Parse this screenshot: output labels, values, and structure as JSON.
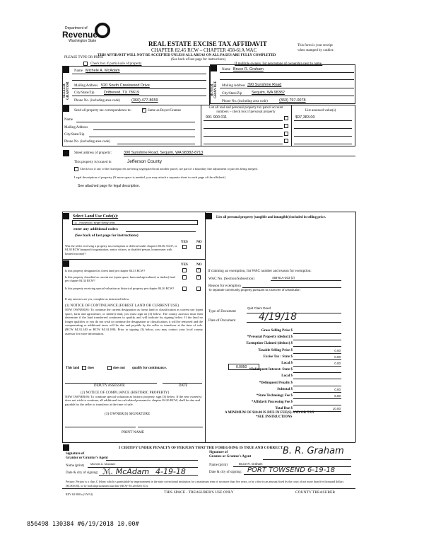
{
  "header": {
    "logo_line1": "Department of",
    "logo_line2": "Revenue",
    "logo_line3": "Washington State",
    "title": "REAL ESTATE EXCISE TAX AFFIDAVIT",
    "subtitle": "CHAPTER 82.45 RCW – CHAPTER 458-61A WAC",
    "warning": "THIS AFFIDAVIT WILL NOT BE ACCEPTED UNLESS ALL AREAS ON ALL PAGES ARE FULLY COMPLETED",
    "see_back": "(See back of last page for instructions)",
    "please_type": "PLEASE TYPE OR PRINT",
    "receipt_note_1": "This form is your receipt",
    "receipt_note_2": "when stamped by cashier.",
    "partial_sale": "Check box if partial sale of property",
    "multiple_owners": "If multiple owners, list percentage of ownership next to name."
  },
  "seller": {
    "side_label": "SELLER GRANTOR",
    "name_label": "Name",
    "name": "Michele A. McAdam",
    "mailing_label": "Mailing Address",
    "mailing": "520 South Creekwood Drive",
    "city_label": "City/State/Zip",
    "city": "Driftwood, TX 78619",
    "phone_label": "Phone No. (including area code)",
    "phone": "(360) 477-8659"
  },
  "buyer": {
    "side_label": "BUYER GRANTEE",
    "name_label": "Name",
    "name": "Bruce R. Graham",
    "mailing_label": "Mailing Address",
    "mailing": "390 Sunshine Road",
    "city_label": "City/State/Zip",
    "city": "Sequim, WA 98382",
    "phone_label": "Phone No. (including area code)",
    "phone": "(360) 797-0078"
  },
  "correspondence": {
    "label": "Send all property tax correspondence to:",
    "same_as": "Same as Buyer/Grantee",
    "same_checked": true,
    "name_label": "Name",
    "mailing_label": "Mailing Address",
    "city_label": "City/State/Zip",
    "phone_label": "Phone No. (including area code)",
    "parcel_header": "List all real and personal property tax parcel account numbers – check box if personal property",
    "assessed_header": "List assessed value(s)",
    "parcels": [
      {
        "number": "991 900 011",
        "value": "$97,383.00"
      }
    ]
  },
  "property": {
    "street_label": "Street address of property:",
    "street": "390 Sunshine Road, Sequim, WA 98382-8713",
    "county_label": "This property is located in",
    "county": "Jefferson County",
    "segregated": "Check box if any of the listed parcels are being segregated from another parcel, are part of a boundary line adjustment or parcels being merged.",
    "legal_label": "Legal description of property (If more space is needed, you may attach a separate sheet to each page of the affidavit)",
    "legal": "See attached page for legal description."
  },
  "land_use": {
    "label": "Select Land Use Code(s):",
    "code": "11 - Household, single family units",
    "additional": "enter any additional codes:",
    "see_back": "(See back of last page for instructions)",
    "yes": "YES",
    "no": "NO",
    "q_exempt": "Was the seller receiving a property tax exemption or deferral under chapters 84.36, 84.37, or 84.38 RCW (nonprofit organization, senior citizen, or disabled person, homeowner with limited income)?"
  },
  "designation": {
    "q1": "Is this property designated as forest land per chapter 84.33 RCW?",
    "q2": "Is this property classified as current use (open space, farm and agricultural, or timber) land per chapter 84.34 RCW?",
    "q3": "Is this property receiving special valuation as historical property per chapter 84.26 RCW?",
    "if_yes": "If any answers are yes, complete as instructed below.",
    "notice1_title": "(1) NOTICE OF CONTINUANCE (FOREST LAND OR CURRENT USE)",
    "notice1_body": "NEW OWNER(S): To continue the current designation as forest land or classification as current use (open space, farm and agriculture, or timber) land, you must sign on (3) below. The county assessor must then determine if the land transferred continues to qualify and will indicate by signing below. If the land no longer qualifies or you do not wish to continue the designation or classification, it will be removed and the compensating or additional taxes will be due and payable by the seller or transferor at the time of sale. (RCW 84.33.140 or RCW 84.34.108). Prior to signing (3) below, you may contact your local county assessor for more information.",
    "this_land": "This land",
    "does": "does",
    "does_not": "does not",
    "qualify": "qualify for continuance.",
    "deputy": "DEPUTY ASSESSOR",
    "date": "DATE",
    "notice2_title": "(2) NOTICE OF COMPLIANCE (HISTORIC PROPERTY)",
    "notice2_body": "NEW OWNER(S): To continue special valuation as historic property, sign (3) below. If the new owner(s) does not wish to continue, all additional tax calculated pursuant to chapter 84.26 RCW, shall be due and payable by the seller or transferor at the time of sale.",
    "owner_sig": "(3) OWNER(S) SIGNATURE",
    "print_name": "PRINT NAME"
  },
  "personal_property": {
    "label": "List all personal property (tangible and intangible) included in selling price."
  },
  "exemption": {
    "label": "If claiming an exemption, list WAC number and reason for exemption:",
    "wac_label": "WAC No. (Section/Subsection)",
    "wac": "458-61A-203 (2)",
    "reason_label": "Reason for exemption",
    "reason": "To separate community property pursuant to a Decree of Dissolution"
  },
  "document": {
    "type_label": "Type of Document",
    "type": "Quit Claim Deed",
    "date_label": "Date of Document",
    "date": "4/19/18"
  },
  "tax": {
    "rows": [
      {
        "label": "Gross Selling Price $",
        "value": ""
      },
      {
        "label": "*Personal Property (deduct) $",
        "value": ""
      },
      {
        "label": "Exemption Claimed (deduct) $",
        "value": ""
      },
      {
        "label": "Taxable Selling Price $",
        "value": "0.00"
      },
      {
        "label": "Excise Tax : State $",
        "value": "0.00"
      },
      {
        "label": "Local $",
        "value": "0.00"
      },
      {
        "label": "*Delinquent Interest: State $",
        "value": ""
      },
      {
        "label": "Local $",
        "value": ""
      },
      {
        "label": "*Delinquent Penalty $",
        "value": ""
      },
      {
        "label": "Subtotal $",
        "value": "0.00"
      },
      {
        "label": "*State Technology Fee $",
        "value": "5.00"
      },
      {
        "label": "*Affidavit Processing Fee $",
        "value": ""
      },
      {
        "label": "Total Due $",
        "value": "10.00"
      }
    ],
    "local_rate": "0.0050",
    "minimum_1": "A MINIMUM OF $10.00 IS DUE IN FEE(S) AND/OR TAX",
    "minimum_2": "*SEE INSTRUCTIONS"
  },
  "certify": {
    "statement": "I CERTIFY UNDER PENALTY OF PERJURY THAT THE FOREGOING IS TRUE AND CORRECT.",
    "grantor_sig_label_1": "Signature of",
    "grantor_sig_label_2": "Grantor or Grantor's Agent",
    "grantee_sig_label_1": "Signature of",
    "grantee_sig_label_2": "Grantee or Grantee's Agent",
    "name_label": "Name (print)",
    "grantor_name": "Michele A. McAdam",
    "grantee_name": "Bruce R. Graham",
    "date_city_label": "Date & city of signing:",
    "grantor_date": "4-19-18",
    "grantee_date": "PORT TOWSEND 6-19-18",
    "perjury": "Perjury: Perjury is a class C felony which is punishable by imprisonment in the state correctional institution for a maximum term of not more than five years, or by a fine in an amount fixed by the court of not more than five thousand dollars ($5,000.00), or by both imprisonment and fine (RCW 9A.20.020 (1C)).",
    "rev": "REV 84 0001a (1/W14)",
    "treasurer_only": "THIS SPACE - TREASURER'S USE ONLY",
    "county_treasurer": "COUNTY TREASURER"
  },
  "stamp": "856498 130384 #6/19/2018 10.00#"
}
